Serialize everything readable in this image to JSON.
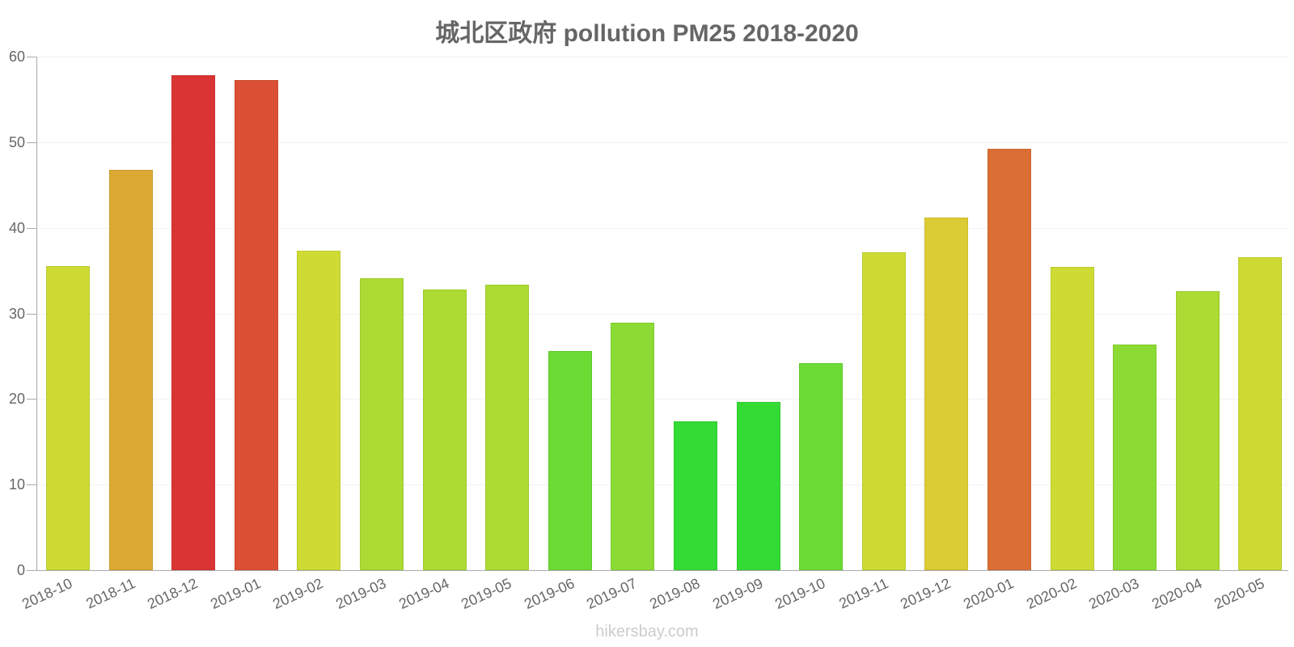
{
  "chart_data": {
    "type": "bar",
    "title": "城北区政府 pollution PM25 2018-2020",
    "xlabel": "",
    "ylabel": "",
    "ylim": [
      0,
      60
    ],
    "yticks": [
      0,
      10,
      20,
      30,
      40,
      50,
      60
    ],
    "grid": true,
    "legend": null,
    "categories": [
      "2018-10",
      "2018-11",
      "2018-12",
      "2019-01",
      "2019-02",
      "2019-03",
      "2019-04",
      "2019-05",
      "2019-06",
      "2019-07",
      "2019-08",
      "2019-09",
      "2019-10",
      "2019-11",
      "2019-12",
      "2020-01",
      "2020-02",
      "2020-03",
      "2020-04",
      "2020-05"
    ],
    "values": [
      35.5,
      46.8,
      57.8,
      57.3,
      37.3,
      34.1,
      32.8,
      33.4,
      25.6,
      28.9,
      17.4,
      19.7,
      24.2,
      37.1,
      41.2,
      49.2,
      35.4,
      26.4,
      32.6,
      36.6
    ],
    "colors": [
      "#cddb34",
      "#dba934",
      "#db3434",
      "#db5034",
      "#cddb34",
      "#addb34",
      "#addb34",
      "#addb34",
      "#6bdb34",
      "#8cdb34",
      "#34db34",
      "#34db34",
      "#6bdb34",
      "#cddb34",
      "#dbcb34",
      "#db6e34",
      "#cddb34",
      "#8cdb34",
      "#addb34",
      "#cddb34"
    ]
  },
  "credit": "hikersbay.com"
}
